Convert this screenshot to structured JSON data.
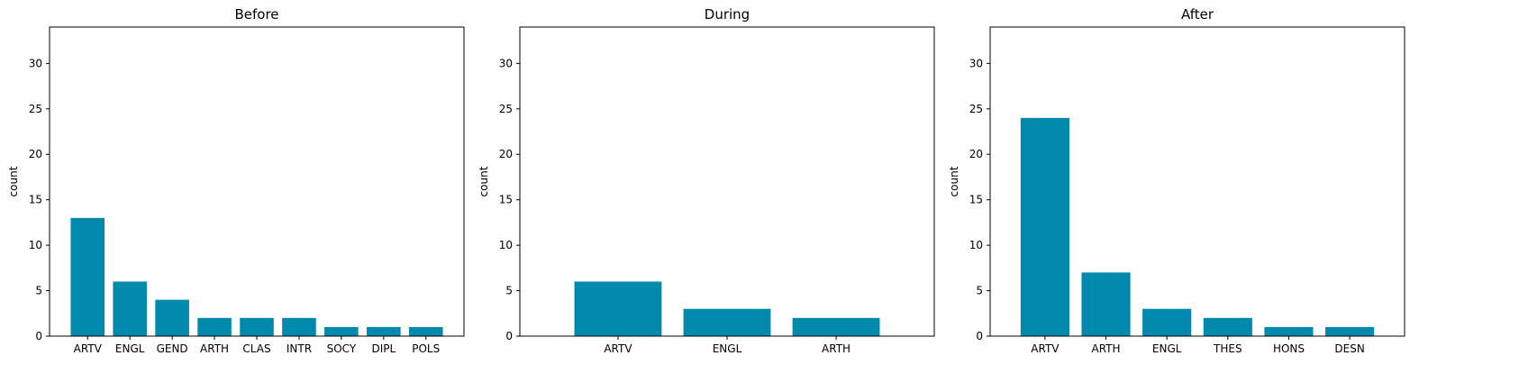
{
  "chart_data": [
    {
      "type": "bar",
      "title": "Before",
      "ylabel": "count",
      "xlabel": "",
      "ylim": [
        0,
        34
      ],
      "yticks": [
        0,
        5,
        10,
        15,
        20,
        25,
        30
      ],
      "grid": false,
      "bar_color": "#0088ad",
      "categories": [
        "ARTV",
        "ENGL",
        "GEND",
        "ARTH",
        "CLAS",
        "INTR",
        "SOCY",
        "DIPL",
        "POLS"
      ],
      "values": [
        13,
        6,
        4,
        2,
        2,
        2,
        1,
        1,
        1
      ]
    },
    {
      "type": "bar",
      "title": "During",
      "ylabel": "count",
      "xlabel": "",
      "ylim": [
        0,
        34
      ],
      "yticks": [
        0,
        5,
        10,
        15,
        20,
        25,
        30
      ],
      "grid": false,
      "bar_color": "#0088ad",
      "categories": [
        "ARTV",
        "ENGL",
        "ARTH"
      ],
      "values": [
        6,
        3,
        2
      ]
    },
    {
      "type": "bar",
      "title": "After",
      "ylabel": "count",
      "xlabel": "",
      "ylim": [
        0,
        34
      ],
      "yticks": [
        0,
        5,
        10,
        15,
        20,
        25,
        30
      ],
      "grid": false,
      "bar_color": "#0088ad",
      "categories": [
        "ARTV",
        "ARTH",
        "ENGL",
        "THES",
        "HONS",
        "DESN"
      ],
      "values": [
        24,
        7,
        3,
        2,
        1,
        1
      ]
    }
  ]
}
